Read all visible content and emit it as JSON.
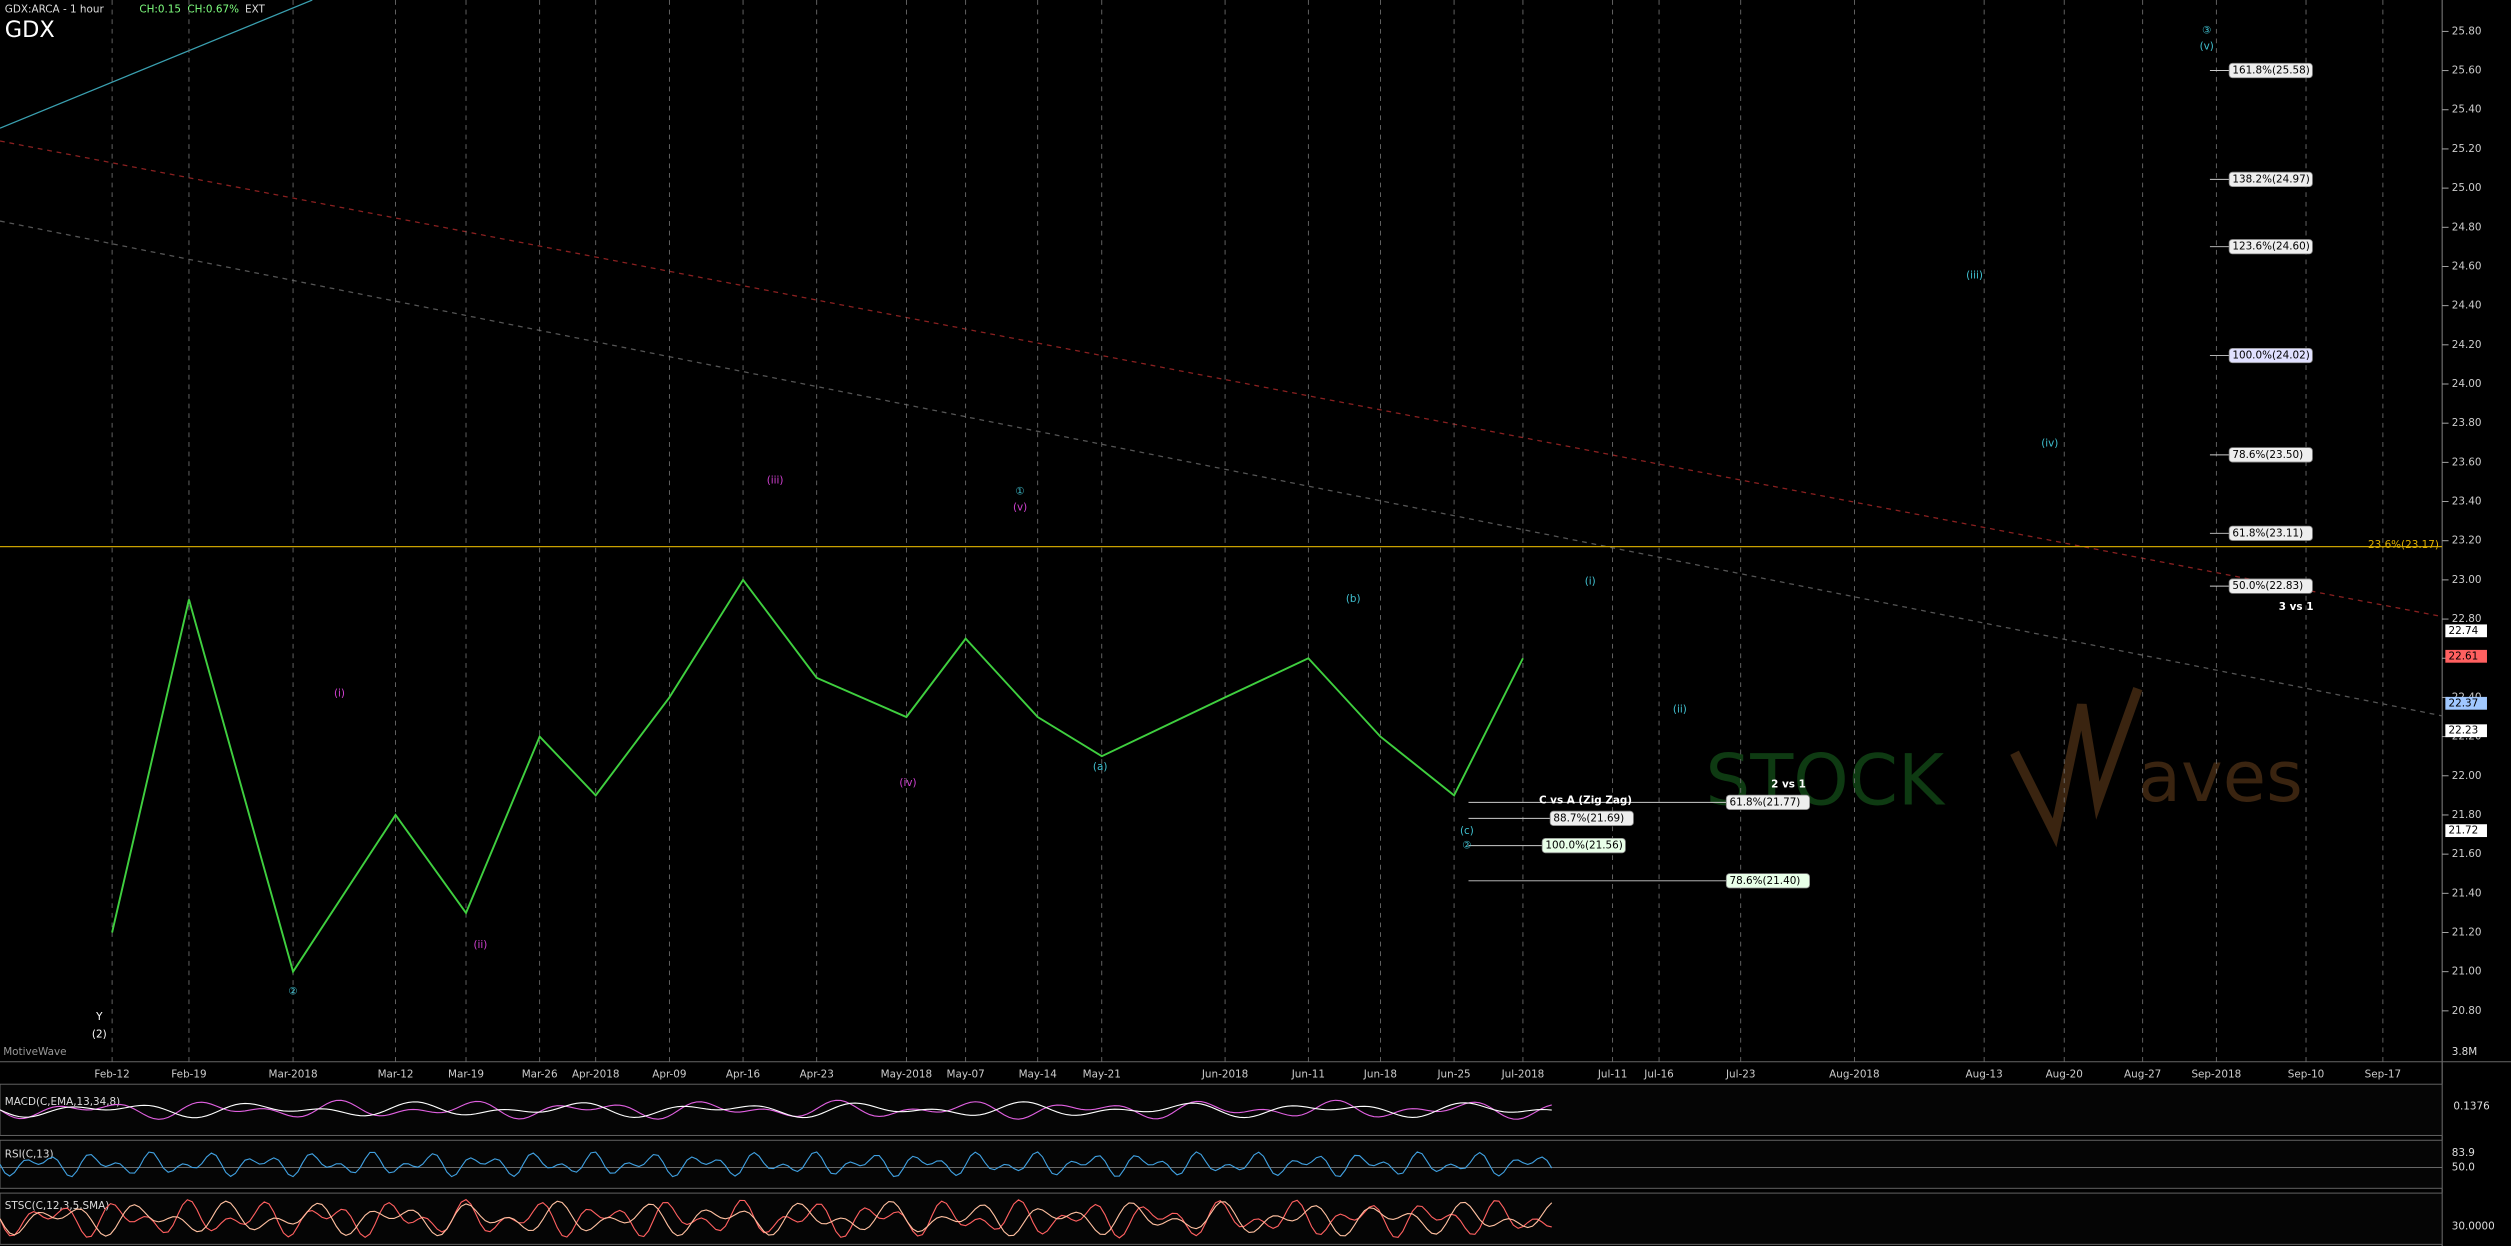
{
  "header": {
    "symbol": "GDX:ARCA - 1 hour",
    "change": "CH:0.15",
    "change_pct": "CH:0.67%",
    "session": "EXT",
    "vendor": "MotiveWave",
    "volume": "3.8M"
  },
  "chart_data": {
    "type": "line",
    "title": "GDX",
    "x": [
      "Feb-12",
      "Feb-19",
      "Mar-2018",
      "Mar-12",
      "Mar-19",
      "Mar-26",
      "Apr-2018",
      "Apr-09",
      "Apr-16",
      "Apr-23",
      "May-2018",
      "May-07",
      "May-14",
      "May-21",
      "Jun-2018",
      "Jun-11",
      "Jun-18",
      "Jun-25",
      "Jul-2018",
      "Jul-11",
      "Jul-16",
      "Jul-23",
      "Aug-2018",
      "Aug-13",
      "Aug-20",
      "Aug-27",
      "Sep-2018",
      "Sep-10",
      "Sep-17"
    ],
    "series": [
      {
        "color": "#3fcf3f",
        "values": [
          21.2,
          22.9,
          21.0,
          21.8,
          21.3,
          22.2,
          21.9,
          22.4,
          23.0,
          22.5,
          22.3,
          22.7,
          22.3,
          22.1,
          22.4,
          22.6,
          22.2,
          21.9,
          22.6,
          null,
          null,
          null,
          null,
          null,
          null,
          null,
          null,
          null,
          null
        ]
      }
    ],
    "ylim": [
      20.54,
      25.96
    ],
    "yticks": [
      {
        "value": 20.8,
        "label": "20.80"
      },
      {
        "value": 21.0,
        "label": "21.00"
      },
      {
        "value": 21.2,
        "label": "21.20"
      },
      {
        "value": 21.4,
        "label": "21.40"
      },
      {
        "value": 21.6,
        "label": "21.60"
      },
      {
        "value": 21.8,
        "label": "21.80"
      },
      {
        "value": 22.0,
        "label": "22.00"
      },
      {
        "value": 22.2,
        "label": "22.20"
      },
      {
        "value": 22.4,
        "label": "22.40"
      },
      {
        "value": 22.6,
        "label": "22.60"
      },
      {
        "value": 22.8,
        "label": "22.80"
      },
      {
        "value": 23.0,
        "label": "23.00"
      },
      {
        "value": 23.2,
        "label": "23.20"
      },
      {
        "value": 23.4,
        "label": "23.40"
      },
      {
        "value": 23.6,
        "label": "23.60"
      },
      {
        "value": 23.8,
        "label": "23.80"
      },
      {
        "value": 24.0,
        "label": "24.00"
      },
      {
        "value": 24.2,
        "label": "24.20"
      },
      {
        "value": 24.4,
        "label": "24.40"
      },
      {
        "value": 24.6,
        "label": "24.60"
      },
      {
        "value": 24.8,
        "label": "24.80"
      },
      {
        "value": 25.0,
        "label": "25.00"
      },
      {
        "value": 25.2,
        "label": "25.20"
      },
      {
        "value": 25.4,
        "label": "25.40"
      },
      {
        "value": 25.6,
        "label": "25.60"
      },
      {
        "value": 25.8,
        "label": "25.80"
      }
    ],
    "price_tags": [
      {
        "value": 22.74,
        "label": "22.74",
        "color": "#ffffff"
      },
      {
        "value": 22.61,
        "label": "22.61",
        "color": "#ff6060"
      },
      {
        "value": 22.37,
        "label": "22.37",
        "color": "#a0c8ff"
      },
      {
        "value": 22.23,
        "label": "22.23",
        "color": "#ffffff"
      },
      {
        "value": 21.72,
        "label": "21.72",
        "color": "#ffffff"
      }
    ],
    "grid": true
  },
  "fib_labels": [
    "161.8%(25.58)",
    "138.2%(24.97)",
    "123.6%(24.60)",
    "100.0%(24.02)",
    "78.6%(23.50)",
    "61.8%(23.11)",
    "50.0%(22.83)",
    "61.8%(21.77)",
    "88.7%(21.69)",
    "100.0%(21.56)",
    "78.6%(21.40)"
  ],
  "notes": [
    "3 vs 1",
    "23.6%(23.17)",
    "C vs A (Zig Zag)",
    "2 vs 1"
  ],
  "waves": [
    "(i)",
    "(ii)",
    "(iii)",
    "(iv)",
    "(v)",
    "(a)",
    "(b)",
    "(c)",
    "(i)",
    "(ii)",
    "(iii)",
    "(iv)",
    "(v)",
    "①",
    "②",
    "③",
    "②",
    "Y",
    "(2)"
  ],
  "indicators": {
    "macd": "MACD(C,EMA,13,34,8)",
    "macd_value": "0.1376",
    "rsi": "RSI(C,13)",
    "rsi_value": "83.9",
    "rsi_mid": "50.0",
    "stsc": "STSC(C,12,3,5,SMA)",
    "stsc_value": "30.0000"
  },
  "watermark": {
    "left": "STOCK",
    "right": "aves"
  }
}
